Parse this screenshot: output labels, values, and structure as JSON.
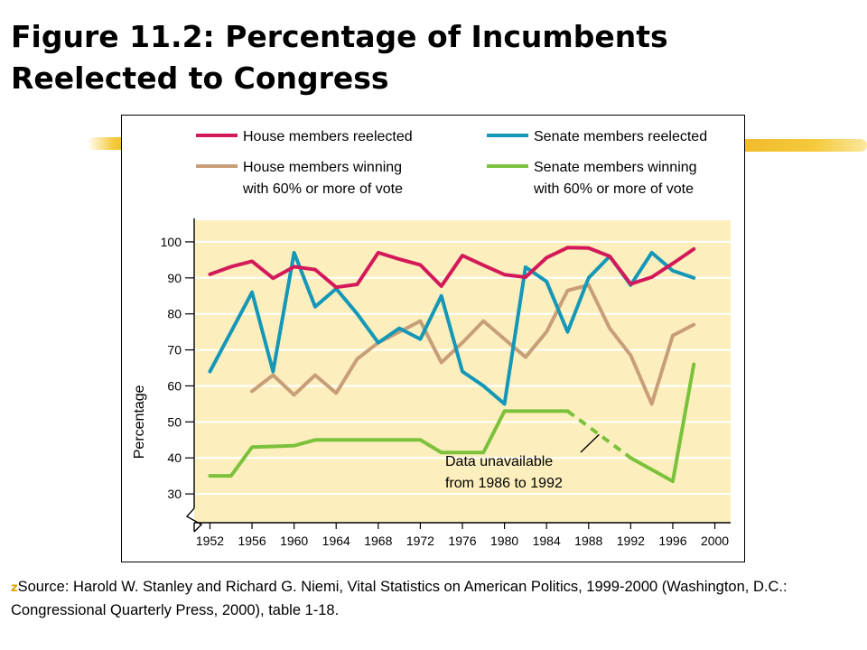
{
  "slide": {
    "title_line1": "Figure 11.2: Percentage of Incumbents",
    "title_line2": "Reelected to Congress",
    "bullet_glyph": "z",
    "source": "Source: Harold W. Stanley and Richard G. Niemi, Vital Statistics on American Politics, 1999-2000 (Washington, D.C.: Congressional Quarterly Press, 2000), table 1-18."
  },
  "chart_data": {
    "type": "line",
    "title": "",
    "xlabel": "",
    "ylabel": "Percentage",
    "xlim": [
      1950.5,
      2001.5
    ],
    "ylim": [
      22,
      106
    ],
    "axis_break": true,
    "x_ticks": [
      1952,
      1956,
      1960,
      1964,
      1968,
      1972,
      1976,
      1980,
      1984,
      1988,
      1992,
      1996,
      2000
    ],
    "y_ticks": [
      30,
      40,
      50,
      60,
      70,
      80,
      90,
      100
    ],
    "grid": true,
    "legend_position": "top",
    "series": [
      {
        "name": "House members reelected",
        "color": "#d3195a",
        "x": [
          1952,
          1954,
          1956,
          1958,
          1960,
          1962,
          1964,
          1966,
          1968,
          1970,
          1972,
          1974,
          1976,
          1978,
          1980,
          1982,
          1984,
          1986,
          1988,
          1990,
          1992,
          1994,
          1996,
          1998
        ],
        "y": [
          91.0,
          93.1,
          94.6,
          89.9,
          93.1,
          92.3,
          87.4,
          88.2,
          97.0,
          95.2,
          93.6,
          87.7,
          96.2,
          93.5,
          90.9,
          90.2,
          95.6,
          98.4,
          98.3,
          96.0,
          88.3,
          90.2,
          94.0,
          98.0
        ]
      },
      {
        "name": "Senate members reelected",
        "color": "#1597b8",
        "x": [
          1952,
          1954,
          1956,
          1958,
          1960,
          1962,
          1964,
          1966,
          1968,
          1970,
          1972,
          1974,
          1976,
          1978,
          1980,
          1982,
          1984,
          1986,
          1988,
          1990,
          1992,
          1994,
          1996,
          1998
        ],
        "y": [
          64.0,
          75.0,
          86.0,
          64.0,
          97.0,
          82.0,
          87.0,
          80.0,
          72.0,
          76.0,
          73.0,
          85.0,
          64.0,
          60.0,
          55.0,
          93.0,
          89.0,
          75.0,
          90.0,
          96.0,
          88.0,
          97.0,
          92.0,
          90.0
        ]
      },
      {
        "name": "House members winning with 60% or more of vote",
        "color": "#c89e78",
        "x": [
          1956,
          1958,
          1960,
          1962,
          1964,
          1966,
          1968,
          1970,
          1972,
          1974,
          1976,
          1978,
          1980,
          1982,
          1984,
          1986,
          1988,
          1990,
          1992,
          1994,
          1996,
          1998
        ],
        "y": [
          58.5,
          63.0,
          57.5,
          63.0,
          58.0,
          67.5,
          72.0,
          75.0,
          78.0,
          66.5,
          72.0,
          78.0,
          73.0,
          68.0,
          75.0,
          86.5,
          88.0,
          76.0,
          68.5,
          55.0,
          74.0,
          77.0
        ]
      },
      {
        "name": "Senate members winning with 60% or more of vote",
        "color": "#7cc13c",
        "x": [
          1952,
          1954,
          1956,
          1958,
          1960,
          1962,
          1964,
          1966,
          1968,
          1970,
          1972,
          1974,
          1976,
          1978,
          1980,
          1982,
          1984,
          1986,
          1992,
          1996,
          1998
        ],
        "y": [
          35.0,
          35.0,
          43.0,
          43.2,
          43.4,
          45.0,
          45.0,
          45.0,
          45.0,
          45.0,
          45.0,
          41.5,
          41.5,
          41.5,
          53.0,
          53.0,
          53.0,
          53.0,
          40.0,
          33.5,
          66.0
        ],
        "gap_from": 1986,
        "gap_to": 1992
      }
    ],
    "annotation": {
      "line1": "Data unavailable",
      "line2": "from 1986 to 1992",
      "points_to_x": 1989,
      "points_to_y": 46.5
    }
  }
}
